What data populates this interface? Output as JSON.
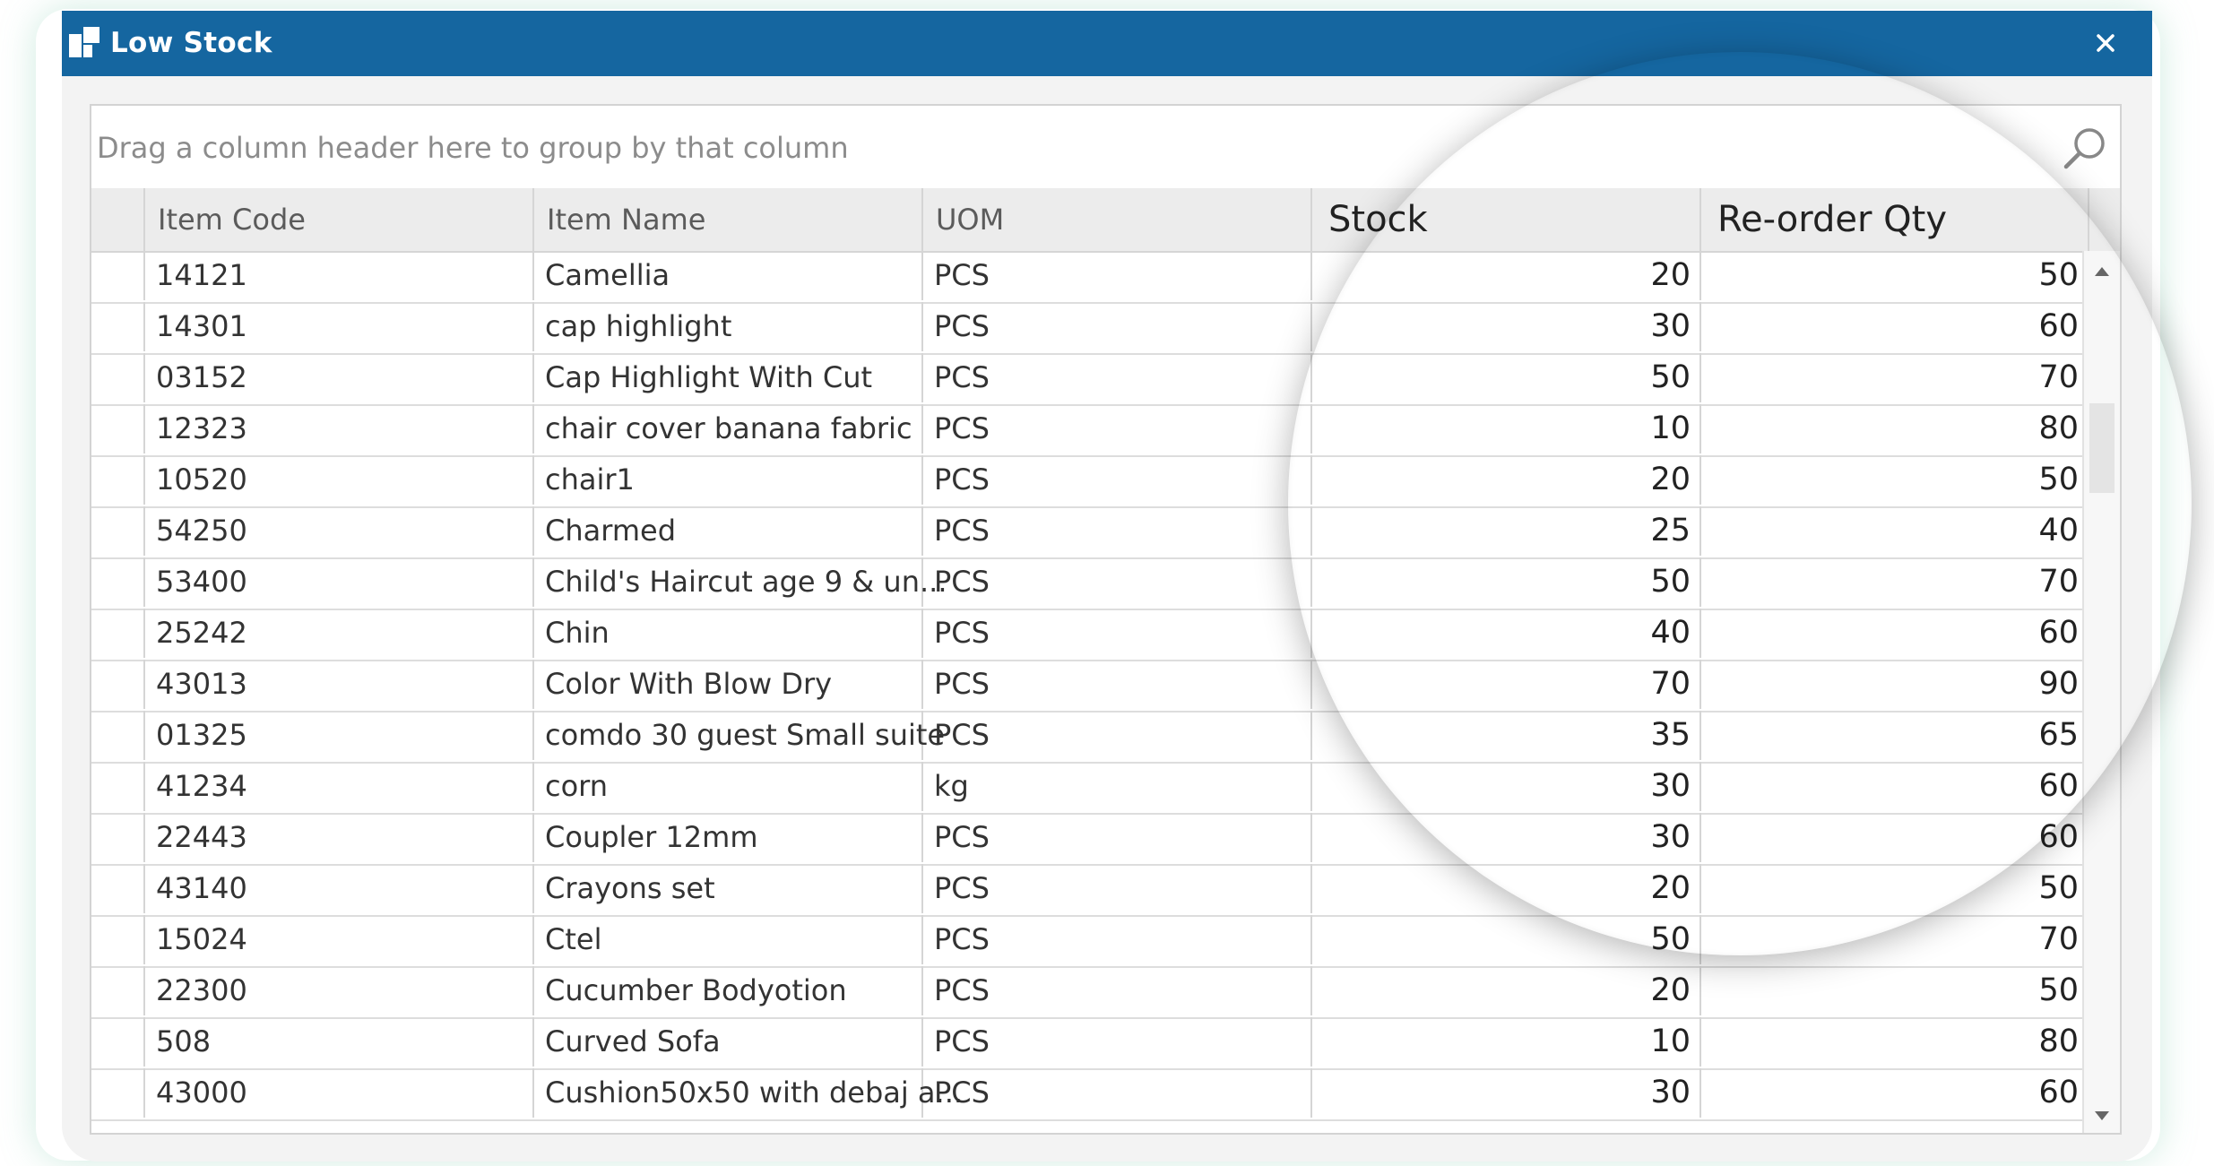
{
  "window": {
    "title": "Low Stock",
    "close_icon": "close-icon",
    "app_icon": "app-logo-icon"
  },
  "group_bar": {
    "hint": "Drag a column header here to group by that column",
    "search_icon": "search-icon"
  },
  "columns": [
    "Item Code",
    "Item Name",
    "UOM",
    "Stock",
    "Re-order Qty"
  ],
  "rows": [
    [
      "14121",
      "Camellia",
      "PCS",
      "20",
      "50"
    ],
    [
      "14301",
      "cap highlight",
      "PCS",
      "30",
      "60"
    ],
    [
      "03152",
      "Cap Highlight With Cut",
      "PCS",
      "50",
      "70"
    ],
    [
      "12323",
      "chair cover banana fabric",
      "PCS",
      "10",
      "80"
    ],
    [
      "10520",
      "chair1",
      "PCS",
      "20",
      "50"
    ],
    [
      "54250",
      "Charmed",
      "PCS",
      "25",
      "40"
    ],
    [
      "53400",
      "Child's Haircut age 9 & un...",
      "PCS",
      "50",
      "70"
    ],
    [
      "25242",
      "Chin",
      "PCS",
      "40",
      "60"
    ],
    [
      "43013",
      "Color With Blow Dry",
      "PCS",
      "70",
      "90"
    ],
    [
      "01325",
      "comdo 30 guest Small suite",
      "PCS",
      "35",
      "65"
    ],
    [
      "41234",
      "corn",
      "kg",
      "30",
      "60"
    ],
    [
      "22443",
      "Coupler 12mm",
      "PCS",
      "30",
      "60"
    ],
    [
      "43140",
      "Crayons set",
      "PCS",
      "20",
      "50"
    ],
    [
      "15024",
      "Ctel",
      "PCS",
      "50",
      "70"
    ],
    [
      "22300",
      "Cucumber Bodyotion",
      "PCS",
      "20",
      "50"
    ],
    [
      "508",
      "Curved Sofa",
      "PCS",
      "10",
      "80"
    ],
    [
      "43000",
      "Cushion50x50 with debaj a...",
      "PCS",
      "30",
      "60"
    ]
  ]
}
